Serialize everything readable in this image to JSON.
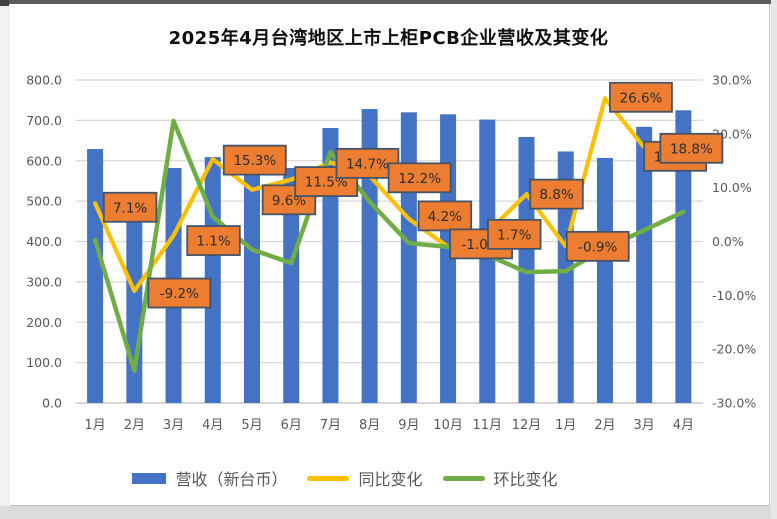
{
  "chart": {
    "title": "2025年4月台湾地区上市上柜PCB企业营收及其变化",
    "legend": [
      {
        "label": "营收（新台币）",
        "swatch": "bar-swatch",
        "color": "#4472C4"
      },
      {
        "label": "同比变化",
        "swatch": "line-swatch",
        "color": "#FFC000"
      },
      {
        "label": "环比变化",
        "swatch": "line-swatch",
        "color": "#70AD47"
      }
    ]
  },
  "chart_data": {
    "type": "bar",
    "subtype": "combo-bar-line",
    "title": "2025年4月台湾地区上市上柜PCB企业营收及其变化",
    "categories": [
      "1月",
      "2月",
      "3月",
      "4月",
      "5月",
      "6月",
      "7月",
      "8月",
      "9月",
      "10月",
      "11月",
      "12月",
      "1月",
      "2月",
      "3月",
      "4月"
    ],
    "series": [
      {
        "name": "营收（新台币）",
        "type": "bar",
        "axis": "left",
        "color": "#4472C4",
        "values": [
          629,
          480,
          582,
          609,
          574,
          582,
          681,
          728,
          720,
          715,
          702,
          659,
          623,
          607,
          684,
          725
        ]
      },
      {
        "name": "同比变化",
        "type": "line",
        "axis": "right",
        "color": "#FFC000",
        "values": [
          7.1,
          -9.2,
          1.1,
          15.3,
          9.6,
          11.5,
          14.7,
          12.2,
          4.2,
          -1.0,
          1.7,
          8.8,
          -0.9,
          26.6,
          17.5,
          18.8
        ],
        "data_labels": [
          "7.1%",
          "-9.2%",
          "1.1%",
          "15.3%",
          "9.6%",
          "11.5%",
          "14.7%",
          "12.2%",
          "4.2%",
          "-1.0%",
          "1.7%",
          "8.8%",
          "-0.9%",
          "26.6%",
          "17.5%",
          "18.8%"
        ],
        "label_fill": "#ED7D31",
        "label_border": "#44546A"
      },
      {
        "name": "环比变化",
        "type": "line",
        "axis": "right",
        "color": "#70AD47",
        "values": [
          0.3,
          -24.0,
          22.4,
          4.6,
          -1.5,
          -4.0,
          16.6,
          7.4,
          -0.3,
          -1.0,
          -2.5,
          -5.7,
          -5.5,
          -1.3,
          2.1,
          5.5
        ]
      }
    ],
    "left_axis": {
      "min": 0,
      "max": 800,
      "ticks": [
        "800.0",
        "700.0",
        "600.0",
        "500.0",
        "400.0",
        "300.0",
        "200.0",
        "100.0",
        "0.0"
      ]
    },
    "right_axis": {
      "min": -30,
      "max": 30,
      "ticks": [
        "30.0%",
        "20.0%",
        "10.0%",
        "0.0%",
        "-10.0%",
        "-20.0%",
        "-30.0%"
      ]
    },
    "grid": true,
    "grid_color": "#D9D9D9",
    "axis_text_color": "#595959",
    "legend_position": "bottom"
  }
}
